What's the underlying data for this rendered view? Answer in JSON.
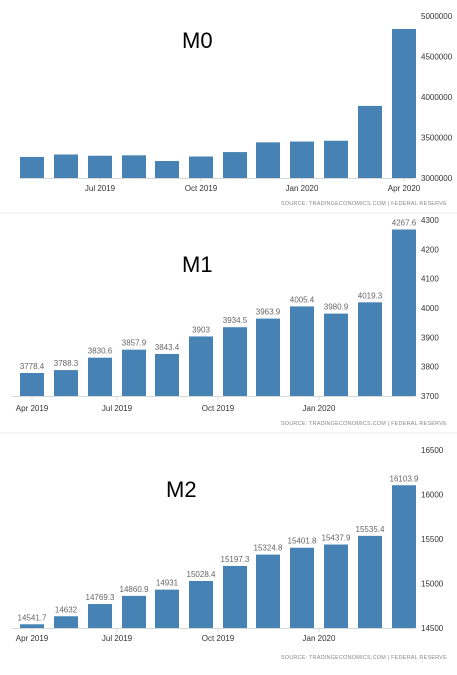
{
  "colors": {
    "bar": "#4682b4",
    "axis": "#d8d8d8",
    "label": "#666666"
  },
  "chart_data": [
    {
      "type": "bar",
      "title": "M0",
      "source": "SOURCE: TRADINGECONOMICS.COM  |  FEDERAL RESERVE",
      "ylim": [
        3000000,
        5000000
      ],
      "yticks": [
        3000000,
        3500000,
        4000000,
        4500000,
        5000000
      ],
      "xticks": [
        {
          "index": 3,
          "label": "Jul 2019"
        },
        {
          "index": 6,
          "label": "Oct 2019"
        },
        {
          "index": 9,
          "label": "Jan 2020"
        },
        {
          "index": 12,
          "label": "Apr 2020"
        }
      ],
      "values": [
        3260000,
        3290000,
        3275000,
        3280000,
        3210000,
        3265000,
        3320000,
        3440000,
        3450000,
        3460000,
        3890000,
        4840000
      ],
      "data_labels": [],
      "grid": false
    },
    {
      "type": "bar",
      "title": "M1",
      "source": "SOURCE: TRADINGECONOMICS.COM  |  FEDERAL RESERVE",
      "ylim": [
        3700,
        4300
      ],
      "yticks": [
        3700,
        3800,
        3900,
        4000,
        4100,
        4200,
        4300
      ],
      "xticks": [
        {
          "index": 0,
          "label": "Apr 2019"
        },
        {
          "index": 3,
          "label": "Jul 2019"
        },
        {
          "index": 6,
          "label": "Oct 2019"
        },
        {
          "index": 9,
          "label": "Jan 2020"
        }
      ],
      "values": [
        3778.4,
        3788.3,
        3830.6,
        3857.9,
        3843.4,
        3903,
        3934.5,
        3963.9,
        4005.4,
        3980.9,
        4019.3,
        4267.6
      ],
      "data_labels": [
        "3778.4",
        "3788.3",
        "3830.6",
        "3857.9",
        "3843.4",
        "3903",
        "3934.5",
        "3963.9",
        "4005.4",
        "3980.9",
        "4019.3",
        "4267.6"
      ],
      "grid": false
    },
    {
      "type": "bar",
      "title": "M2",
      "source": "SOURCE: TRADINGECONOMICS.COM  |  FEDERAL RESERVE",
      "ylim": [
        14500,
        16500
      ],
      "yticks": [
        14500,
        15000,
        15500,
        16000,
        16500
      ],
      "xticks": [
        {
          "index": 0,
          "label": "Apr 2019"
        },
        {
          "index": 3,
          "label": "Jul 2019"
        },
        {
          "index": 6,
          "label": "Oct 2019"
        },
        {
          "index": 9,
          "label": "Jan 2020"
        }
      ],
      "values": [
        14541.7,
        14632,
        14769.3,
        14860.9,
        14931,
        15028.4,
        15197.3,
        15324.8,
        15401.8,
        15437.9,
        15535.4,
        16103.9
      ],
      "data_labels": [
        "14541.7",
        "14632",
        "14769.3",
        "14860.9",
        "14931",
        "15028.4",
        "15197.3",
        "15324.8",
        "15401.8",
        "15437.9",
        "15535.4",
        "16103.9"
      ],
      "grid": false
    }
  ]
}
